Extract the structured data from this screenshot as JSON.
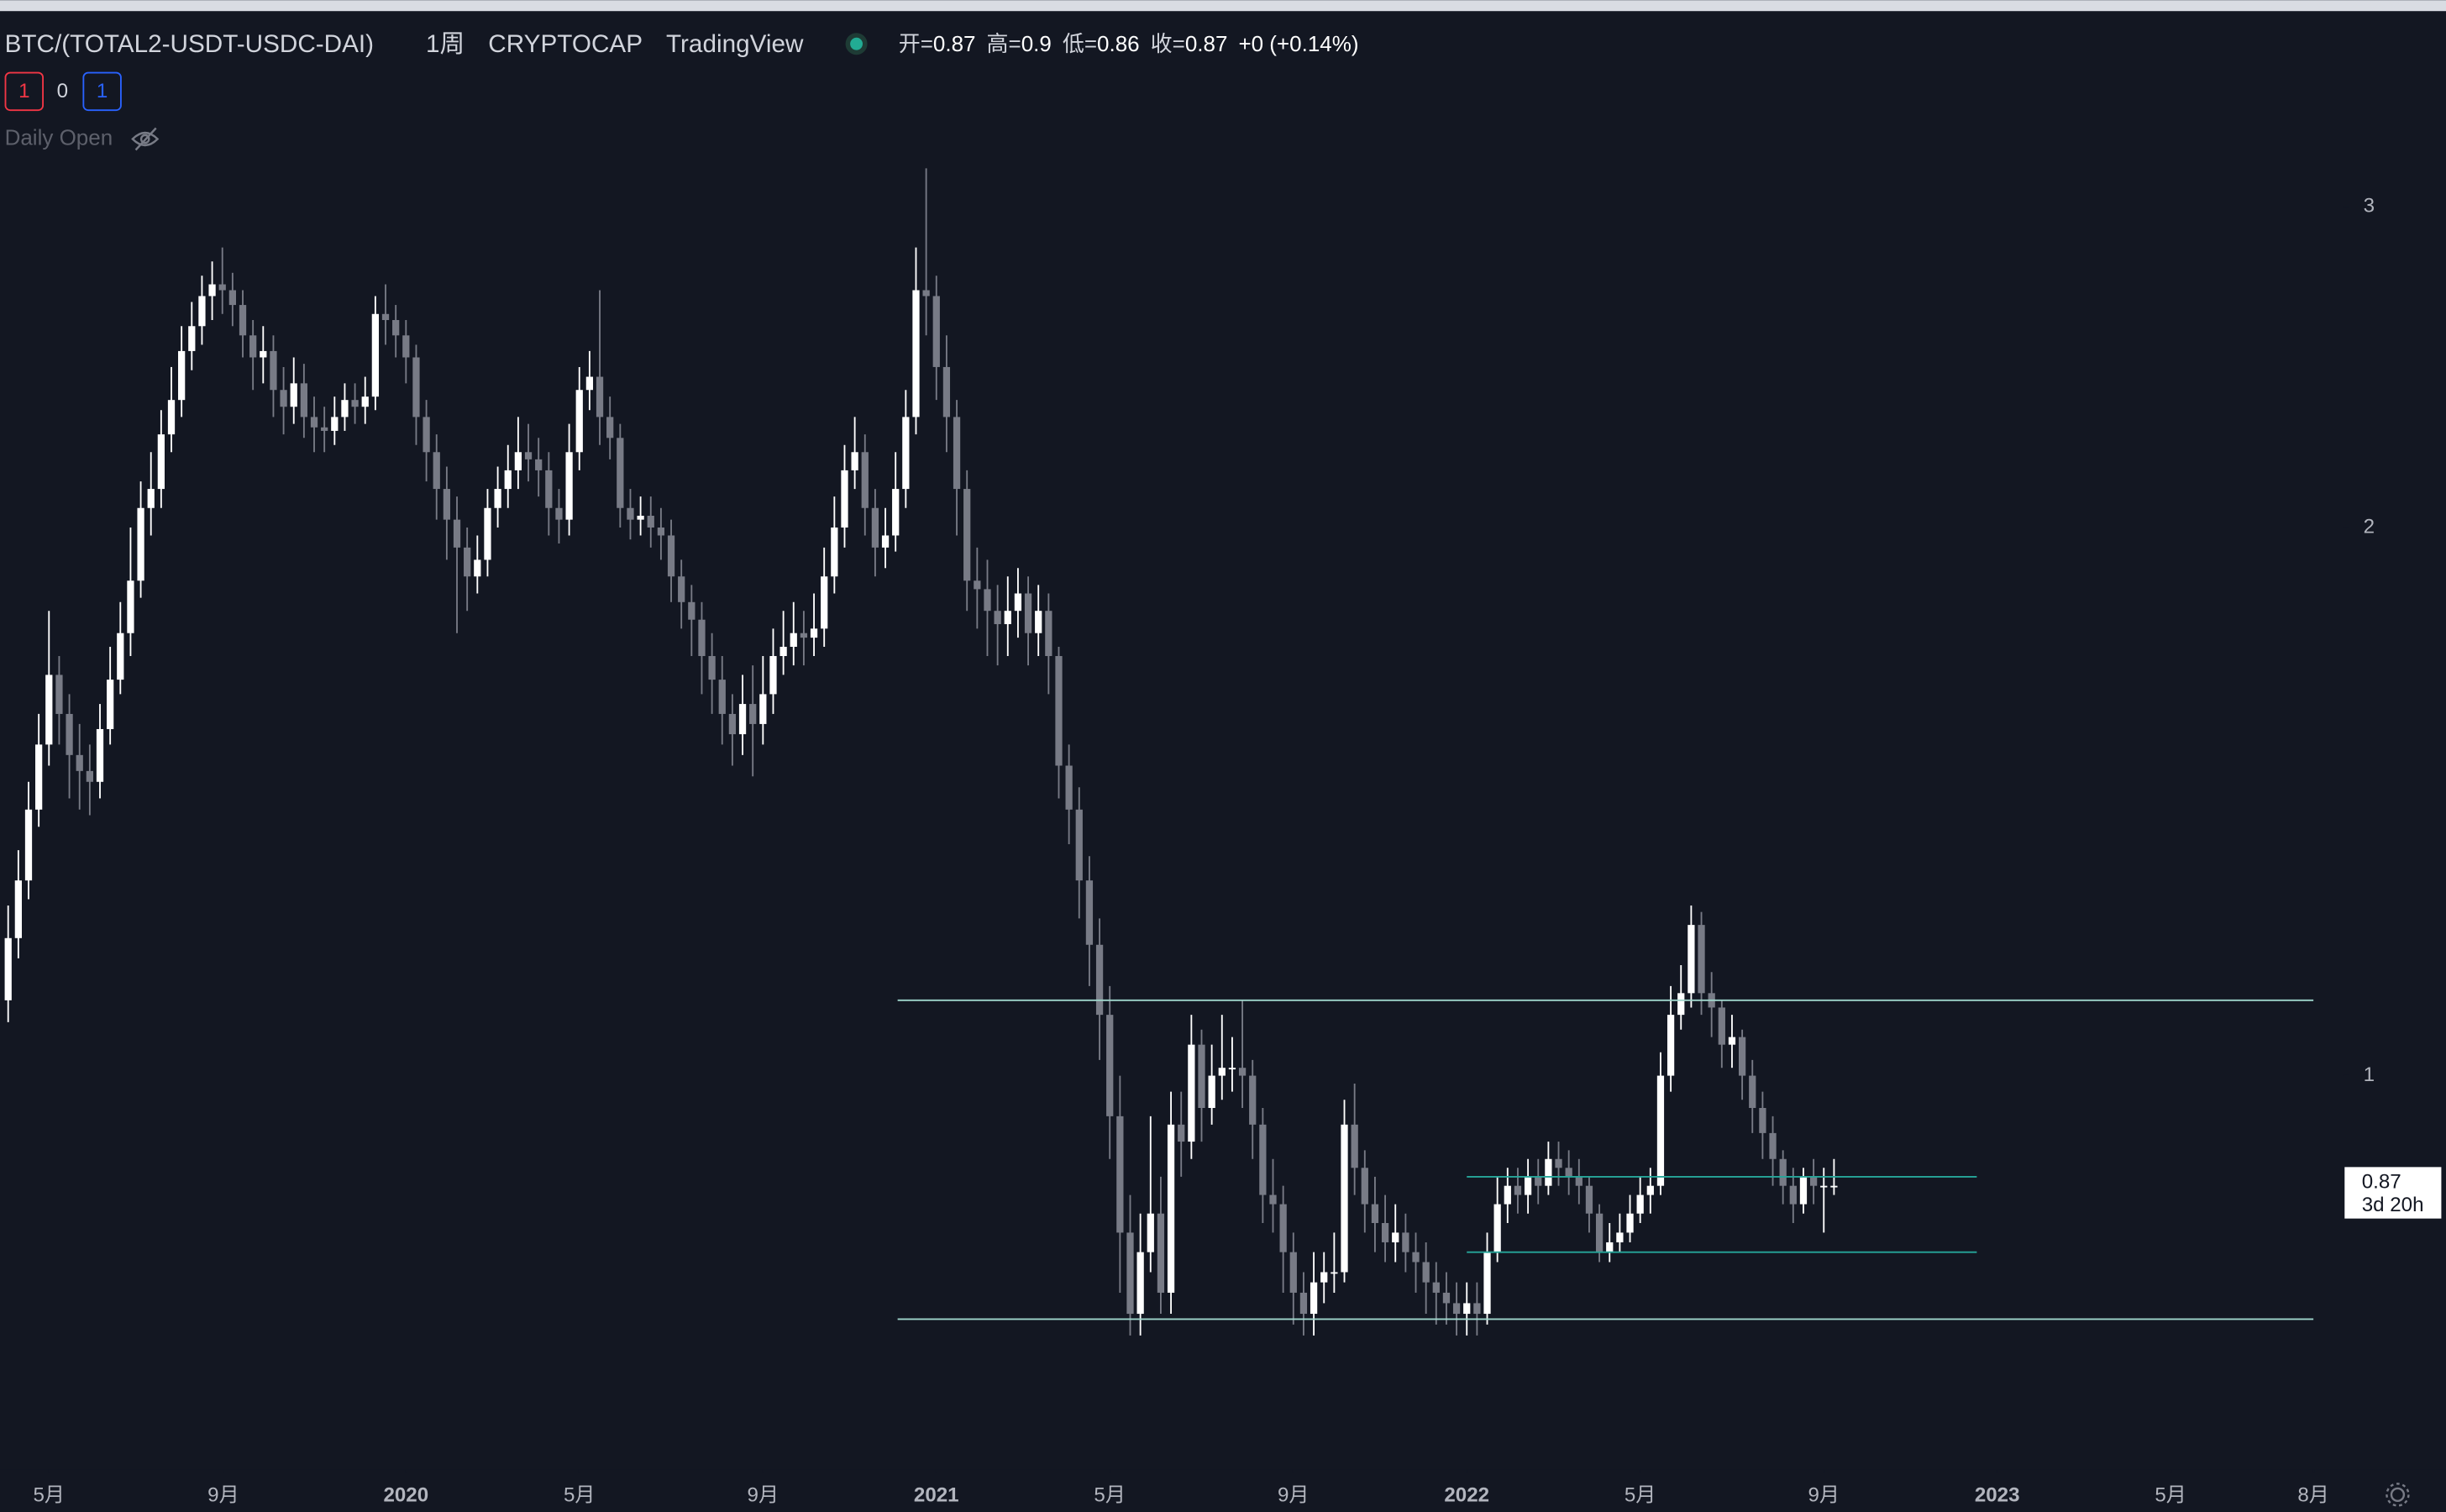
{
  "header": {
    "symbol": "BTC/(TOTAL2-USDT-USDC-DAI)",
    "interval": "1周",
    "exchange": "CRYPTOCAP",
    "source": "TradingView",
    "ohlc": [
      {
        "label": "开=",
        "value": "0.87"
      },
      {
        "label": "高=",
        "value": "0.9"
      },
      {
        "label": "低=",
        "value": "0.86"
      },
      {
        "label": "收=",
        "value": "0.87"
      }
    ],
    "change": "+0 (+0.14%)",
    "badges": [
      "1",
      "0",
      "1"
    ],
    "indicator": "Daily Open"
  },
  "price_label": {
    "value": "0.87",
    "countdown": "3d 20h"
  },
  "chart_data": {
    "type": "candlestick",
    "log_scale": true,
    "up_color": "#ffffff",
    "down_color": "#787b86",
    "ylim": [
      0.61,
      3.82
    ],
    "yticks": [
      1,
      2,
      3
    ],
    "xlim": [
      -0.8,
      228.6
    ],
    "xticks": [
      {
        "value": 4,
        "label": "5月"
      },
      {
        "value": 21.1,
        "label": "9月"
      },
      {
        "value": 39,
        "label": "2020"
      },
      {
        "value": 56,
        "label": "5月"
      },
      {
        "value": 74,
        "label": "9月"
      },
      {
        "value": 91,
        "label": "2021"
      },
      {
        "value": 108,
        "label": "5月"
      },
      {
        "value": 126,
        "label": "9月"
      },
      {
        "value": 143,
        "label": "2022"
      },
      {
        "value": 160,
        "label": "5月"
      },
      {
        "value": 178,
        "label": "9月"
      },
      {
        "value": 195,
        "label": "2023"
      },
      {
        "value": 212,
        "label": "5月"
      },
      {
        "value": 226,
        "label": "8月"
      }
    ],
    "open": [
      1.1,
      1.19,
      1.28,
      1.4,
      1.52,
      1.66,
      1.58,
      1.5,
      1.47,
      1.45,
      1.55,
      1.65,
      1.75,
      1.87,
      2.05,
      2.1,
      2.25,
      2.35,
      2.5,
      2.58,
      2.68,
      2.72,
      2.7,
      2.65,
      2.55,
      2.48,
      2.5,
      2.38,
      2.33,
      2.4,
      2.3,
      2.27,
      2.26,
      2.3,
      2.35,
      2.33,
      2.36,
      2.62,
      2.6,
      2.55,
      2.48,
      2.3,
      2.2,
      2.1,
      2.02,
      1.95,
      1.88,
      1.92,
      2.05,
      2.1,
      2.15,
      2.2,
      2.18,
      2.15,
      2.05,
      2.02,
      2.2,
      2.38,
      2.42,
      2.3,
      2.24,
      2.05,
      2.02,
      2.03,
      2.0,
      1.98,
      1.88,
      1.82,
      1.78,
      1.7,
      1.65,
      1.58,
      1.54,
      1.6,
      1.56,
      1.62,
      1.7,
      1.72,
      1.75,
      1.74,
      1.76,
      1.88,
      2.0,
      2.15,
      2.2,
      2.05,
      1.95,
      1.98,
      2.1,
      2.3,
      2.7,
      2.68,
      2.45,
      2.3,
      2.1,
      1.87,
      1.85,
      1.8,
      1.77,
      1.8,
      1.84,
      1.75,
      1.8,
      1.7,
      1.48,
      1.4,
      1.28,
      1.18,
      1.08,
      0.95,
      0.82,
      0.74,
      0.8,
      0.84,
      0.76,
      0.94,
      0.92,
      1.04,
      0.96,
      1.0,
      1.01,
      1.01,
      1.0,
      0.94,
      0.86,
      0.85,
      0.8,
      0.76,
      0.74,
      0.77,
      0.78,
      0.78,
      0.94,
      0.89,
      0.85,
      0.83,
      0.81,
      0.82,
      0.8,
      0.79,
      0.77,
      0.76,
      0.75,
      0.74,
      0.75,
      0.74,
      0.8,
      0.85,
      0.87,
      0.86,
      0.88,
      0.87,
      0.9,
      0.89,
      0.88,
      0.87,
      0.84,
      0.8,
      0.81,
      0.82,
      0.84,
      0.86,
      0.87,
      1.0,
      1.08,
      1.11,
      1.21,
      1.11,
      1.09,
      1.04,
      1.05,
      1.0,
      0.96,
      0.93,
      0.9,
      0.87,
      0.85,
      0.88,
      0.87,
      0.87
    ],
    "high": [
      1.24,
      1.33,
      1.45,
      1.58,
      1.8,
      1.7,
      1.62,
      1.56,
      1.52,
      1.6,
      1.72,
      1.82,
      2.0,
      2.12,
      2.2,
      2.32,
      2.45,
      2.58,
      2.66,
      2.75,
      2.8,
      2.85,
      2.76,
      2.7,
      2.6,
      2.58,
      2.55,
      2.45,
      2.48,
      2.46,
      2.36,
      2.33,
      2.36,
      2.4,
      2.4,
      2.42,
      2.68,
      2.72,
      2.65,
      2.6,
      2.52,
      2.35,
      2.25,
      2.16,
      2.08,
      2.0,
      1.98,
      2.1,
      2.16,
      2.22,
      2.3,
      2.28,
      2.24,
      2.2,
      2.1,
      2.28,
      2.45,
      2.5,
      2.7,
      2.36,
      2.28,
      2.1,
      2.08,
      2.08,
      2.05,
      2.02,
      1.92,
      1.86,
      1.82,
      1.75,
      1.7,
      1.62,
      1.66,
      1.68,
      1.7,
      1.76,
      1.8,
      1.82,
      1.8,
      1.84,
      1.95,
      2.08,
      2.22,
      2.3,
      2.25,
      2.1,
      2.05,
      2.2,
      2.38,
      2.85,
      3.15,
      2.75,
      2.55,
      2.35,
      2.15,
      1.95,
      1.92,
      1.86,
      1.88,
      1.9,
      1.88,
      1.86,
      1.84,
      1.72,
      1.52,
      1.44,
      1.32,
      1.22,
      1.12,
      1.0,
      0.86,
      0.84,
      0.95,
      0.88,
      0.98,
      0.98,
      1.08,
      1.06,
      1.04,
      1.08,
      1.05,
      1.1,
      1.02,
      0.96,
      0.9,
      0.87,
      0.82,
      0.78,
      0.8,
      0.8,
      0.82,
      0.97,
      0.99,
      0.91,
      0.88,
      0.86,
      0.85,
      0.84,
      0.82,
      0.81,
      0.79,
      0.78,
      0.77,
      0.77,
      0.77,
      0.82,
      0.88,
      0.89,
      0.89,
      0.9,
      0.9,
      0.92,
      0.92,
      0.91,
      0.9,
      0.88,
      0.85,
      0.83,
      0.84,
      0.86,
      0.88,
      0.89,
      1.03,
      1.12,
      1.15,
      1.24,
      1.23,
      1.14,
      1.1,
      1.08,
      1.06,
      1.02,
      0.98,
      0.95,
      0.91,
      0.89,
      0.89,
      0.9,
      0.89,
      0.9
    ],
    "low": [
      1.07,
      1.16,
      1.25,
      1.37,
      1.48,
      1.52,
      1.42,
      1.4,
      1.39,
      1.42,
      1.52,
      1.62,
      1.7,
      1.83,
      1.98,
      2.05,
      2.2,
      2.3,
      2.44,
      2.52,
      2.6,
      2.62,
      2.58,
      2.48,
      2.38,
      2.4,
      2.3,
      2.25,
      2.28,
      2.24,
      2.2,
      2.2,
      2.22,
      2.26,
      2.28,
      2.28,
      2.32,
      2.52,
      2.48,
      2.4,
      2.22,
      2.12,
      2.02,
      1.92,
      1.75,
      1.8,
      1.84,
      1.88,
      2.0,
      2.05,
      2.1,
      2.12,
      2.08,
      1.98,
      1.96,
      1.98,
      2.15,
      2.32,
      2.22,
      2.18,
      2.0,
      1.97,
      1.98,
      1.95,
      1.92,
      1.82,
      1.76,
      1.7,
      1.62,
      1.58,
      1.52,
      1.48,
      1.5,
      1.46,
      1.52,
      1.58,
      1.66,
      1.68,
      1.68,
      1.7,
      1.72,
      1.84,
      1.95,
      2.1,
      1.98,
      1.88,
      1.9,
      1.94,
      2.05,
      2.25,
      2.55,
      2.35,
      2.2,
      1.98,
      1.8,
      1.76,
      1.7,
      1.68,
      1.7,
      1.74,
      1.68,
      1.7,
      1.62,
      1.42,
      1.34,
      1.22,
      1.12,
      1.02,
      0.9,
      0.76,
      0.72,
      0.72,
      0.78,
      0.74,
      0.74,
      0.88,
      0.9,
      0.92,
      0.94,
      0.97,
      0.98,
      0.96,
      0.9,
      0.83,
      0.82,
      0.76,
      0.73,
      0.72,
      0.72,
      0.75,
      0.76,
      0.77,
      0.86,
      0.82,
      0.8,
      0.79,
      0.79,
      0.78,
      0.76,
      0.74,
      0.73,
      0.73,
      0.72,
      0.72,
      0.72,
      0.73,
      0.79,
      0.83,
      0.84,
      0.84,
      0.85,
      0.86,
      0.87,
      0.86,
      0.85,
      0.82,
      0.79,
      0.79,
      0.8,
      0.81,
      0.83,
      0.84,
      0.86,
      0.98,
      1.06,
      1.09,
      1.08,
      1.05,
      1.01,
      1.01,
      0.97,
      0.93,
      0.9,
      0.87,
      0.85,
      0.83,
      0.84,
      0.85,
      0.82,
      0.86
    ],
    "close": [
      1.19,
      1.28,
      1.4,
      1.52,
      1.66,
      1.58,
      1.5,
      1.47,
      1.45,
      1.55,
      1.65,
      1.75,
      1.87,
      2.05,
      2.1,
      2.25,
      2.35,
      2.5,
      2.58,
      2.68,
      2.72,
      2.7,
      2.65,
      2.55,
      2.48,
      2.5,
      2.38,
      2.33,
      2.4,
      2.3,
      2.27,
      2.26,
      2.3,
      2.35,
      2.33,
      2.36,
      2.62,
      2.6,
      2.55,
      2.48,
      2.3,
      2.2,
      2.1,
      2.02,
      1.95,
      1.88,
      1.92,
      2.05,
      2.1,
      2.15,
      2.2,
      2.18,
      2.15,
      2.05,
      2.02,
      2.2,
      2.38,
      2.42,
      2.3,
      2.24,
      2.05,
      2.02,
      2.03,
      2.0,
      1.98,
      1.88,
      1.82,
      1.78,
      1.7,
      1.65,
      1.58,
      1.54,
      1.6,
      1.56,
      1.62,
      1.7,
      1.72,
      1.75,
      1.74,
      1.76,
      1.88,
      2.0,
      2.15,
      2.2,
      2.05,
      1.95,
      1.98,
      2.1,
      2.3,
      2.7,
      2.68,
      2.45,
      2.3,
      2.1,
      1.87,
      1.85,
      1.8,
      1.77,
      1.8,
      1.84,
      1.75,
      1.8,
      1.7,
      1.48,
      1.4,
      1.28,
      1.18,
      1.08,
      0.95,
      0.82,
      0.74,
      0.8,
      0.84,
      0.76,
      0.94,
      0.92,
      1.04,
      0.96,
      1.0,
      1.01,
      1.01,
      1.0,
      0.94,
      0.86,
      0.85,
      0.8,
      0.76,
      0.74,
      0.77,
      0.78,
      0.78,
      0.94,
      0.89,
      0.85,
      0.83,
      0.81,
      0.82,
      0.8,
      0.79,
      0.77,
      0.76,
      0.75,
      0.74,
      0.75,
      0.74,
      0.8,
      0.85,
      0.87,
      0.86,
      0.88,
      0.87,
      0.9,
      0.89,
      0.88,
      0.87,
      0.84,
      0.8,
      0.81,
      0.82,
      0.84,
      0.86,
      0.87,
      1.0,
      1.08,
      1.11,
      1.21,
      1.11,
      1.09,
      1.04,
      1.05,
      1.0,
      0.96,
      0.93,
      0.9,
      0.87,
      0.85,
      0.88,
      0.87,
      0.87,
      0.87
    ],
    "levels": [
      {
        "value": 1.1,
        "start": 87.2,
        "end": 226,
        "color": "#9fd6cc"
      },
      {
        "value": 0.88,
        "start": 143,
        "end": 193,
        "color": "#26a69a"
      },
      {
        "value": 0.8,
        "start": 143,
        "end": 193,
        "color": "#26a69a"
      },
      {
        "value": 0.735,
        "start": 87.2,
        "end": 226,
        "color": "#9fd6cc"
      }
    ]
  }
}
